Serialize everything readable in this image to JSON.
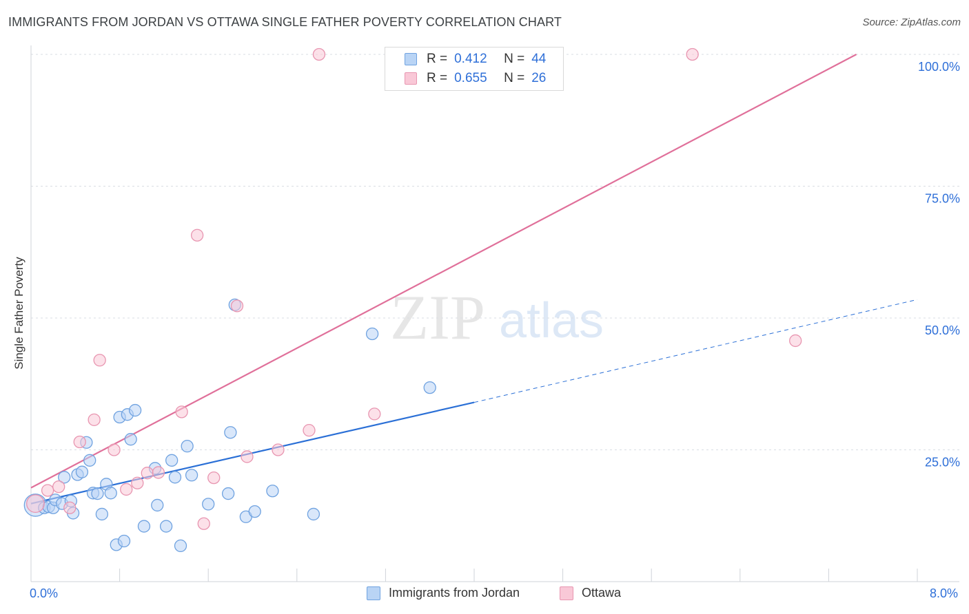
{
  "title": "IMMIGRANTS FROM JORDAN VS OTTAWA SINGLE FATHER POVERTY CORRELATION CHART",
  "source": "Source: ZipAtlas.com",
  "watermark": {
    "zip": "ZIP",
    "atlas": "atlas"
  },
  "legend_top": {
    "rows": [
      {
        "r_label": "R =",
        "r_value": "0.412",
        "n_label": "N =",
        "n_value": "44"
      },
      {
        "r_label": "R =",
        "r_value": "0.655",
        "n_label": "N =",
        "n_value": "26"
      }
    ]
  },
  "legend_bottom": {
    "blue": "Immigrants from Jordan",
    "pink": "Ottawa"
  },
  "colors": {
    "blue_fill": "#b9d4f5",
    "blue_stroke": "#6fa2e0",
    "blue_line": "#2a6fd6",
    "pink_fill": "#f9c8d7",
    "pink_stroke": "#e895b0",
    "pink_line": "#e0709a",
    "tick_text": "#2e6fd8",
    "grid": "#d9dde3"
  },
  "chart_data": {
    "type": "scatter",
    "title": "IMMIGRANTS FROM JORDAN VS OTTAWA SINGLE FATHER POVERTY CORRELATION CHART",
    "xlabel": "",
    "ylabel": "Single Father Poverty",
    "xlim": [
      0,
      8
    ],
    "ylim": [
      0,
      100
    ],
    "x_tick_labels": [
      "0.0%",
      "8.0%"
    ],
    "y_ticks": [
      25,
      50,
      75,
      100
    ],
    "y_tick_labels": [
      "25.0%",
      "50.0%",
      "75.0%",
      "100.0%"
    ],
    "grid": true,
    "legend_placement": "top-center",
    "series": [
      {
        "name": "Immigrants from Jordan",
        "color": "#6fa2e0",
        "points": [
          [
            0.04,
            14.5,
            1.9
          ],
          [
            0.12,
            14.0,
            1
          ],
          [
            0.16,
            14.2,
            1
          ],
          [
            0.2,
            14.0,
            1
          ],
          [
            0.22,
            15.5,
            1
          ],
          [
            0.28,
            14.8,
            1
          ],
          [
            0.3,
            19.8,
            1
          ],
          [
            0.36,
            15.3,
            1
          ],
          [
            0.38,
            13.0,
            1
          ],
          [
            0.42,
            20.3,
            1
          ],
          [
            0.46,
            20.8,
            1
          ],
          [
            0.5,
            26.4,
            1
          ],
          [
            0.53,
            23.0,
            1
          ],
          [
            0.56,
            16.8,
            1
          ],
          [
            0.6,
            16.7,
            1
          ],
          [
            0.64,
            12.8,
            1
          ],
          [
            0.68,
            18.5,
            1
          ],
          [
            0.72,
            16.8,
            1
          ],
          [
            0.77,
            7.0,
            1
          ],
          [
            0.8,
            31.2,
            1
          ],
          [
            0.84,
            7.7,
            1
          ],
          [
            0.87,
            31.7,
            1
          ],
          [
            0.9,
            27.0,
            1
          ],
          [
            0.94,
            32.5,
            1
          ],
          [
            1.02,
            10.5,
            1
          ],
          [
            1.12,
            21.5,
            1
          ],
          [
            1.14,
            14.5,
            1
          ],
          [
            1.22,
            10.5,
            1
          ],
          [
            1.27,
            23.0,
            1
          ],
          [
            1.3,
            19.8,
            1
          ],
          [
            1.35,
            6.8,
            1
          ],
          [
            1.41,
            25.7,
            1
          ],
          [
            1.45,
            20.2,
            1
          ],
          [
            1.6,
            14.7,
            1
          ],
          [
            1.78,
            16.7,
            1
          ],
          [
            1.8,
            28.3,
            1
          ],
          [
            1.84,
            52.5,
            1
          ],
          [
            1.94,
            12.3,
            1
          ],
          [
            2.02,
            13.3,
            1
          ],
          [
            2.18,
            17.2,
            1
          ],
          [
            2.55,
            12.8,
            1
          ],
          [
            3.08,
            47.0,
            1
          ],
          [
            3.6,
            36.8,
            1
          ]
        ],
        "trend": {
          "x": [
            0,
            4.0
          ],
          "y": [
            14.8,
            34.0
          ],
          "style": "solid"
        },
        "trend_extension": {
          "x": [
            4.0,
            8.0
          ],
          "y": [
            34.0,
            53.5
          ],
          "style": "dashed"
        }
      },
      {
        "name": "Ottawa",
        "color": "#e895b0",
        "points": [
          [
            0.04,
            14.8,
            1.5
          ],
          [
            0.15,
            17.3,
            1
          ],
          [
            0.25,
            18.0,
            1
          ],
          [
            0.35,
            14.0,
            1
          ],
          [
            0.44,
            26.5,
            1
          ],
          [
            0.57,
            30.7,
            1
          ],
          [
            0.62,
            42.0,
            1
          ],
          [
            0.75,
            25.0,
            1
          ],
          [
            0.86,
            17.5,
            1
          ],
          [
            0.96,
            18.7,
            1
          ],
          [
            1.05,
            20.6,
            1
          ],
          [
            1.15,
            20.7,
            1
          ],
          [
            1.36,
            32.2,
            1
          ],
          [
            1.5,
            65.7,
            1
          ],
          [
            1.56,
            11.0,
            1
          ],
          [
            1.65,
            19.7,
            1
          ],
          [
            1.86,
            52.3,
            1
          ],
          [
            1.95,
            23.7,
            1
          ],
          [
            2.23,
            25.0,
            1
          ],
          [
            2.51,
            28.7,
            1
          ],
          [
            2.6,
            100.0,
            1
          ],
          [
            3.1,
            31.8,
            1
          ],
          [
            5.97,
            100.0,
            1
          ],
          [
            6.9,
            45.7,
            1
          ]
        ],
        "trend": {
          "x": [
            0,
            7.45
          ],
          "y": [
            17.8,
            100.0
          ],
          "style": "solid"
        }
      }
    ]
  }
}
